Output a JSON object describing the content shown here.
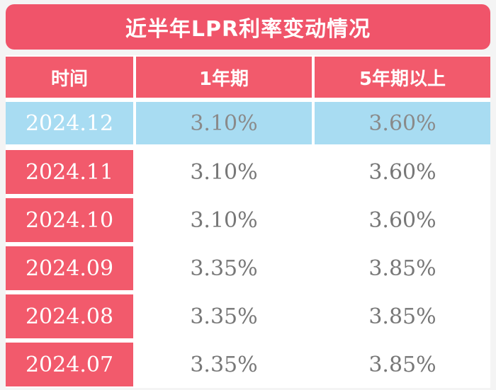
{
  "chart_data": {
    "type": "table",
    "title": "近半年LPR利率变动情况",
    "columns": [
      "时间",
      "1年期",
      "5年期以上"
    ],
    "rows": [
      {
        "date": "2024.12",
        "one_year": "3.10%",
        "five_year": "3.60%"
      },
      {
        "date": "2024.11",
        "one_year": "3.10%",
        "five_year": "3.60%"
      },
      {
        "date": "2024.10",
        "one_year": "3.10%",
        "five_year": "3.60%"
      },
      {
        "date": "2024.09",
        "one_year": "3.35%",
        "five_year": "3.85%"
      },
      {
        "date": "2024.08",
        "one_year": "3.35%",
        "five_year": "3.85%"
      },
      {
        "date": "2024.07",
        "one_year": "3.35%",
        "five_year": "3.85%"
      }
    ],
    "highlighted_row": 0
  },
  "colors": {
    "header": "#f25a6c",
    "highlight": "#a8dcf2",
    "value_text": "#777777"
  }
}
